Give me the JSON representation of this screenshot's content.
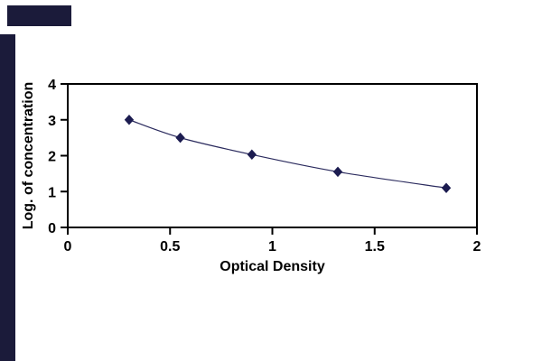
{
  "theme": {
    "decoration_color": "#1b1b3a",
    "axis_color": "#000000",
    "label_color": "#000000",
    "line_color": "#2b2b5e",
    "marker_color": "#1c1c50",
    "background": "#ffffff"
  },
  "chart_data": {
    "type": "line",
    "title": "",
    "xlabel": "Optical Density",
    "ylabel": "Log. of concentration",
    "x": [
      0.3,
      0.55,
      0.9,
      1.32,
      1.85
    ],
    "y": [
      3.0,
      2.5,
      2.03,
      1.55,
      1.1
    ],
    "xlim": [
      0,
      2
    ],
    "ylim": [
      0,
      4
    ],
    "xticks": [
      0,
      0.5,
      1,
      1.5,
      2
    ],
    "yticks": [
      0,
      1,
      2,
      3,
      4
    ],
    "xtick_labels": [
      "0",
      "0.5",
      "1",
      "1.5",
      "2"
    ],
    "ytick_labels": [
      "0",
      "1",
      "2",
      "3",
      "4"
    ],
    "grid": false,
    "legend": false,
    "marker": "diamond"
  }
}
